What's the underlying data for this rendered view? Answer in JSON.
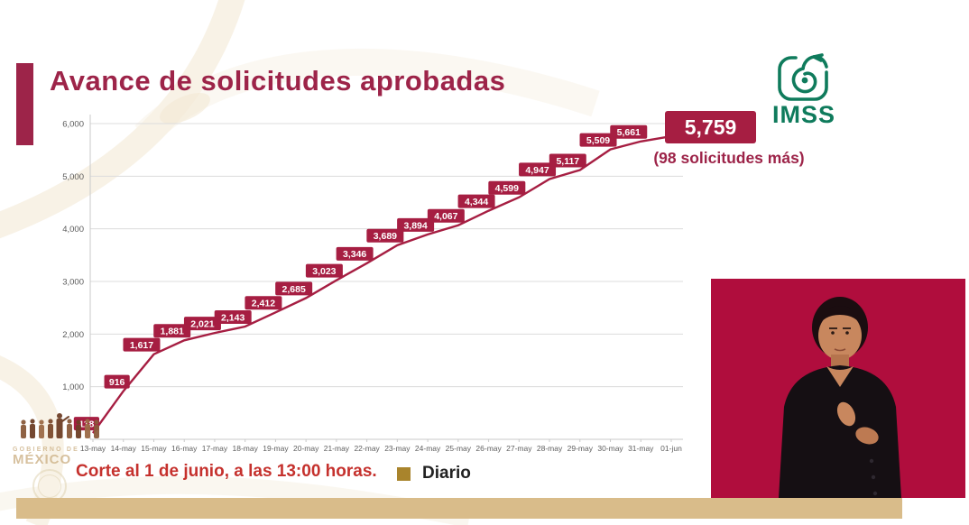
{
  "slide": {
    "title": "Avance de solicitudes aprobadas"
  },
  "imss": {
    "text": "IMSS"
  },
  "chart_data": {
    "type": "line",
    "title": "Avance de solicitudes aprobadas",
    "x": [
      "13-may",
      "14-may",
      "15-may",
      "16-may",
      "17-may",
      "18-may",
      "19-may",
      "20-may",
      "21-may",
      "22-may",
      "23-may",
      "24-may",
      "25-may",
      "26-may",
      "27-may",
      "28-may",
      "29-may",
      "30-may",
      "31-may",
      "01-jun"
    ],
    "values": [
      118,
      916,
      1617,
      1881,
      2021,
      2143,
      2412,
      2685,
      3023,
      3346,
      3689,
      3894,
      4067,
      4344,
      4599,
      4947,
      5117,
      5509,
      5661,
      5759
    ],
    "point_labels": [
      "118",
      "916",
      "1,617",
      "1,881",
      "2,021",
      "2,143",
      "2,412",
      "2,685",
      "3,023",
      "3,346",
      "3,689",
      "3,894",
      "4,067",
      "4,344",
      "4,599",
      "4,947",
      "5,117",
      "5,509",
      "5,661"
    ],
    "highlight": {
      "label": "5,759",
      "note": "(98 solicitudes más)"
    },
    "ylim": [
      0,
      6000
    ],
    "ytick_values": [
      6000,
      5000,
      4000,
      3000,
      2000,
      1000
    ],
    "ytick_labels": [
      "6,000",
      "5,000",
      "4,000",
      "3,000",
      "2,000",
      "1,000"
    ],
    "grid": true,
    "legend_position": "bottom",
    "line_color": "#a61e42"
  },
  "legend": {
    "label": "Diario",
    "swatch_color": "#a9842c"
  },
  "footer": {
    "cutoff_note": "Corte al 1 de junio, a las 13:00 horas."
  },
  "watermark": {
    "line1": "GOBIERNO DE",
    "line2": "MÉXICO"
  },
  "colors": {
    "accent_guinda": "#9d2449",
    "footer_red": "#c5312d",
    "video_bg": "#b00d3d",
    "bottom_bar": "#d9bc8a",
    "imss_green": "#0f7b5c"
  }
}
